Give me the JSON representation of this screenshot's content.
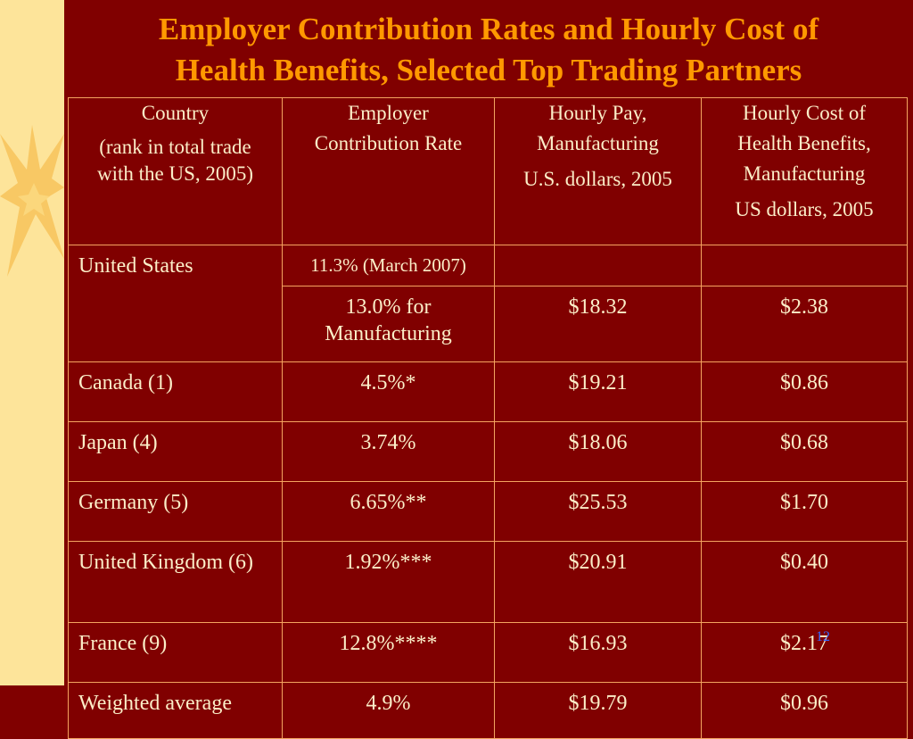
{
  "slide": {
    "title_line1": "Employer Contribution Rates and Hourly Cost of",
    "title_line2": "Health Benefits, Selected Top Trading Partners",
    "page_number": "12"
  },
  "table": {
    "headers": {
      "country": [
        "Country",
        "(rank in total trade",
        "with the US, 2005)"
      ],
      "rate": [
        "Employer",
        "Contribution Rate"
      ],
      "pay": [
        "Hourly Pay,",
        "Manufacturing",
        "U.S. dollars, 2005"
      ],
      "cost": [
        "Hourly Cost of",
        "Health Benefits,",
        "Manufacturing",
        "US dollars, 2005"
      ]
    },
    "us": {
      "country": "United States",
      "rate_row1": "11.3% (March 2007)",
      "rate_row2": [
        "13.0% for",
        "Manufacturing"
      ],
      "pay": "$18.32",
      "cost": "$2.38"
    },
    "rows": [
      {
        "country": "Canada (1)",
        "rate": "4.5%*",
        "pay": "$19.21",
        "cost": "$0.86"
      },
      {
        "country": "Japan (4)",
        "rate": "3.74%",
        "pay": "$18.06",
        "cost": "$0.68"
      },
      {
        "country": "Germany (5)",
        "rate": "6.65%**",
        "pay": "$25.53",
        "cost": "$1.70"
      },
      {
        "country": "United Kingdom (6)",
        "rate": "1.92%***",
        "pay": "$20.91",
        "cost": "$0.40"
      },
      {
        "country": "France (9)",
        "rate": "12.8%****",
        "pay": "$16.93",
        "cost": "$2.17"
      },
      {
        "country": "Weighted average",
        "rate": "4.9%",
        "pay": "$19.79",
        "cost": "$0.96"
      }
    ]
  },
  "colors": {
    "background": "#800000",
    "title": "#ff9900",
    "text": "#fbeec8",
    "border": "#f4a460",
    "side_panel": "#fde49a",
    "page_number": "#3366ff"
  }
}
